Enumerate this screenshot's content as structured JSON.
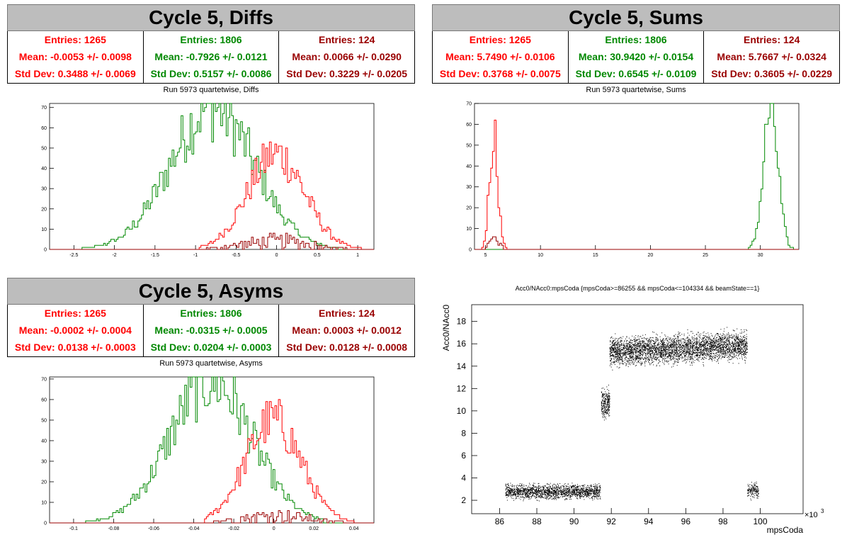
{
  "panels": [
    {
      "title": "Cycle 5, Diffs",
      "subtitle": "Run 5973 quartetwise, Diffs",
      "stats": [
        {
          "entries": "Entries: 1265",
          "mean": "Mean: -0.0053 +/- 0.0098",
          "std": "Std Dev: 0.3488 +/- 0.0069",
          "color": "#ff0000"
        },
        {
          "entries": "Entries: 1806",
          "mean": "Mean: -0.7926 +/- 0.0121",
          "std": "Std Dev: 0.5157 +/- 0.0086",
          "color": "#008800"
        },
        {
          "entries": "Entries: 124",
          "mean": "Mean: 0.0066 +/- 0.0290",
          "std": "Std Dev: 0.3229 +/- 0.0205",
          "color": "#990000"
        }
      ]
    },
    {
      "title": "Cycle 5, Sums",
      "subtitle": "Run 5973 quartetwise, Sums",
      "stats": [
        {
          "entries": "Entries: 1265",
          "mean": "Mean: 5.7490 +/- 0.0106",
          "std": "Std Dev: 0.3768 +/- 0.0075",
          "color": "#ff0000"
        },
        {
          "entries": "Entries: 1806",
          "mean": "Mean: 30.9420 +/- 0.0154",
          "std": "Std Dev: 0.6545 +/- 0.0109",
          "color": "#008800"
        },
        {
          "entries": "Entries: 124",
          "mean": "Mean: 5.7667 +/- 0.0324",
          "std": "Std Dev: 0.3605 +/- 0.0229",
          "color": "#990000"
        }
      ]
    },
    {
      "title": "Cycle 5, Asyms",
      "subtitle": "Run 5973 quartetwise, Asyms",
      "stats": [
        {
          "entries": "Entries: 1265",
          "mean": "Mean: -0.0002 +/- 0.0004",
          "std": "Std Dev: 0.0138 +/- 0.0003",
          "color": "#ff0000"
        },
        {
          "entries": "Entries: 1806",
          "mean": "Mean: -0.0315 +/- 0.0005",
          "std": "Std Dev: 0.0204 +/- 0.0003",
          "color": "#008800"
        },
        {
          "entries": "Entries: 124",
          "mean": "Mean: 0.0003 +/- 0.0012",
          "std": "Std Dev: 0.0128 +/- 0.0008",
          "color": "#990000"
        }
      ]
    }
  ],
  "chart_data": [
    {
      "type": "histogram",
      "id": "diffs",
      "xlim": [
        -2.8,
        1.2
      ],
      "ylim": [
        0,
        72
      ],
      "xticks": [
        -2.5,
        -2,
        -1.5,
        -1,
        -0.5,
        0,
        0.5,
        1
      ],
      "xtick_labels": [
        "-2.5",
        "-2",
        "-1.5",
        "-1",
        "-0.5",
        "0",
        "0.5",
        "1"
      ],
      "yticks": [
        0,
        10,
        20,
        30,
        40,
        50,
        60,
        70
      ],
      "series": [
        {
          "mean": -0.7926,
          "std": 0.5157,
          "peak": 70,
          "range": [
            -2.45,
            0.75
          ],
          "color": "#008800"
        },
        {
          "mean": -0.0053,
          "std": 0.3488,
          "peak": 47,
          "range": [
            -0.95,
            1.1
          ],
          "color": "#ff0000"
        },
        {
          "mean": 0.0066,
          "std": 0.3229,
          "peak": 8,
          "range": [
            -1.0,
            1.0
          ],
          "color": "#990000"
        }
      ]
    },
    {
      "type": "histogram",
      "id": "sums",
      "xlim": [
        4,
        33.5
      ],
      "ylim": [
        0,
        70
      ],
      "xticks": [
        5,
        10,
        15,
        20,
        25,
        30
      ],
      "xtick_labels": [
        "5",
        "10",
        "15",
        "20",
        "25",
        "30"
      ],
      "yticks": [
        0,
        10,
        20,
        30,
        40,
        50,
        60,
        70
      ],
      "series": [
        {
          "mean": 30.942,
          "std": 0.6545,
          "peak": 68,
          "range": [
            28.6,
            33.0
          ],
          "color": "#008800"
        },
        {
          "mean": 5.749,
          "std": 0.3768,
          "peak": 57,
          "range": [
            4.7,
            7.1
          ],
          "color": "#ff0000"
        },
        {
          "mean": 5.7667,
          "std": 0.3605,
          "peak": 8,
          "range": [
            4.8,
            7.0
          ],
          "color": "#990000"
        }
      ]
    },
    {
      "type": "histogram",
      "id": "asyms",
      "xlim": [
        -0.112,
        0.05
      ],
      "ylim": [
        0,
        71
      ],
      "xticks": [
        -0.1,
        -0.08,
        -0.06,
        -0.04,
        -0.02,
        0,
        0.02,
        0.04
      ],
      "xtick_labels": [
        "-0.1",
        "-0.08",
        "-0.06",
        "-0.04",
        "-0.02",
        "0",
        "0.02",
        "0.04"
      ],
      "yticks": [
        0,
        10,
        20,
        30,
        40,
        50,
        60,
        70
      ],
      "series": [
        {
          "mean": -0.0315,
          "std": 0.0204,
          "peak": 69,
          "range": [
            -0.1,
            0.025
          ],
          "color": "#008800"
        },
        {
          "mean": -0.0002,
          "std": 0.0138,
          "peak": 50,
          "range": [
            -0.035,
            0.04
          ],
          "color": "#ff0000"
        },
        {
          "mean": 0.0003,
          "std": 0.0128,
          "peak": 7,
          "range": [
            -0.035,
            0.04
          ],
          "color": "#990000"
        }
      ]
    },
    {
      "type": "scatter",
      "id": "acc0",
      "title": "Acc0/NAcc0:mpsCoda {mpsCoda>=86255 && mpsCoda<=104334 && beamState==1}",
      "xlabel": "mpsCoda",
      "ylabel": "Acc0/NAcc0",
      "x_exponent": "×10",
      "x_exponent_power": "3",
      "xlim": [
        84.5,
        102.3
      ],
      "ylim": [
        0.8,
        19.5
      ],
      "xticks": [
        86,
        88,
        90,
        92,
        94,
        96,
        98,
        100
      ],
      "xtick_labels": [
        "86",
        "88",
        "90",
        "92",
        "94",
        "96",
        "98",
        "100"
      ],
      "yticks": [
        2,
        4,
        6,
        8,
        10,
        12,
        14,
        16,
        18
      ],
      "ytick_labels": [
        "2",
        "4",
        "6",
        "8",
        "10",
        "12",
        "14",
        "16",
        "18"
      ],
      "clusters": [
        {
          "x": [
            86.3,
            91.4
          ],
          "y_center": 2.8,
          "y_spread": 0.45,
          "count": 1700
        },
        {
          "x": [
            91.45,
            91.9
          ],
          "y_center": 10.7,
          "y_spread": 0.9,
          "count": 260
        },
        {
          "x": [
            91.9,
            99.3
          ],
          "y_center": 15.3,
          "y_spread": 0.9,
          "y_slope": 0.08,
          "count": 3600
        },
        {
          "x": [
            99.3,
            99.9
          ],
          "y_center": 2.9,
          "y_spread": 0.45,
          "count": 160
        }
      ],
      "color": "#000000"
    }
  ]
}
